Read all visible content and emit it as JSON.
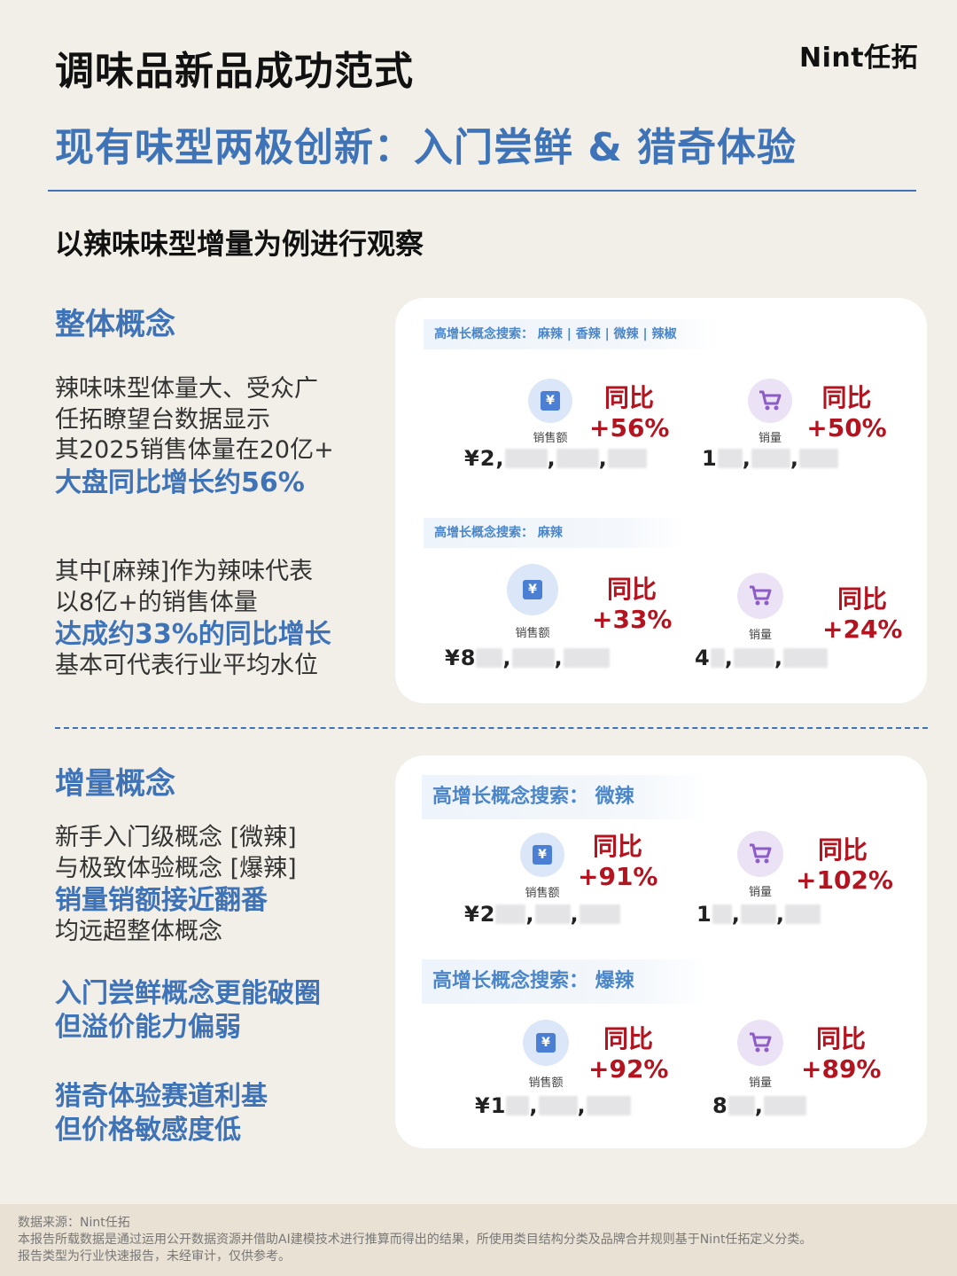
{
  "header": {
    "title": "调味品新品成功范式",
    "brand": "Nint任拓",
    "subtitle": "现有味型两极创新：入门尝鲜 & 猎奇体验",
    "lead": "以辣味味型增量为例进行观察"
  },
  "section1": {
    "heading": "整体概念",
    "p1": [
      "辣味味型体量大、受众广",
      "任拓瞭望台数据显示",
      "其2025销售体量在20亿+"
    ],
    "p1_highlight": "大盘同比增长约56%",
    "p2": [
      "其中[麻辣]作为辣味代表",
      "以8亿+的销售体量"
    ],
    "p2_highlight": "达成约33%的同比增长",
    "p2_tail": "基本可代表行业平均水位"
  },
  "section2": {
    "heading": "增量概念",
    "p1": [
      "新手入门级概念 [微辣]",
      "与极致体验概念 [爆辣]"
    ],
    "p1_highlight": "销量销额接近翻番",
    "p1_tail": "均远超整体概念",
    "note1": [
      "入门尝鲜概念更能破圈",
      "但溢价能力偏弱"
    ],
    "note2": [
      "猎奇体验赛道利基",
      "但价格敏感度低"
    ]
  },
  "labels": {
    "sales_amount": "销售额",
    "sales_volume": "销量",
    "yoy": "同比",
    "yen_icon": "¥"
  },
  "cards": {
    "all": {
      "tag": "高增长概念搜索： 麻辣 | 香辣 | 微辣 | 辣椒",
      "amount_yoy": "+56%",
      "amount_value": "¥2,",
      "volume_yoy": "+50%",
      "volume_value": "1"
    },
    "mala": {
      "tag": "高增长概念搜索： 麻辣",
      "amount_yoy": "+33%",
      "amount_value": "¥8",
      "volume_yoy": "+24%",
      "volume_value": "4"
    },
    "weila": {
      "tag": "高增长概念搜索： 微辣",
      "amount_yoy": "+91%",
      "amount_value": "¥2",
      "volume_yoy": "+102%",
      "volume_value": "1"
    },
    "baola": {
      "tag": "高增长概念搜索： 爆辣",
      "amount_yoy": "+92%",
      "amount_value": "¥1",
      "volume_yoy": "+89%",
      "volume_value": "8"
    }
  },
  "footer": {
    "source": "数据来源：Nint任拓",
    "disclaimer": "本报告所载数据是通过运用公开数据资源并借助AI建模技术进行推算而得出的结果，所使用类目结构分类及品牌合并规则基于Nint任拓定义分类。",
    "report_type": "报告类型为行业快速报告，未经审计，仅供参考。"
  }
}
